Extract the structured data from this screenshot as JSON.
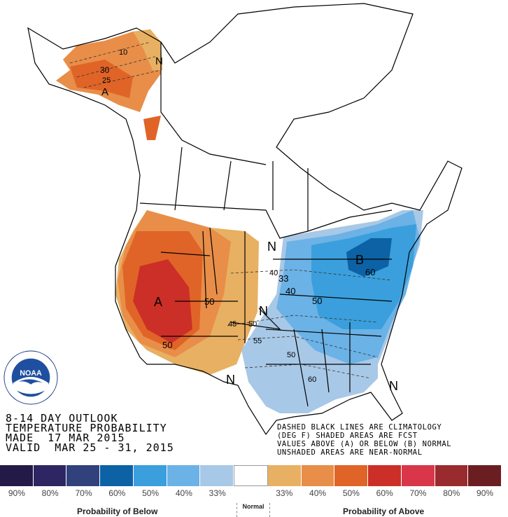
{
  "title_lines": [
    "8-14 DAY OUTLOOK",
    "TEMPERATURE PROBABILITY",
    "MADE  17 MAR 2015",
    "VALID  MAR 25 - 31, 2015"
  ],
  "note_lines": [
    "DASHED BLACK LINES ARE CLIMATOLOGY",
    "(DEG F) SHADED AREAS ARE FCST",
    "VALUES ABOVE (A) OR BELOW (B) NORMAL",
    "UNSHADED AREAS ARE NEAR-NORMAL"
  ],
  "map_labels": {
    "ak_n": "N",
    "ak_10": "10",
    "ak_30": "30",
    "ak_25": "25",
    "ak_a": "A",
    "w_a": "A",
    "w_50": "50",
    "w_50b": "50",
    "w_45": "45",
    "w_50c": "50",
    "c_n1": "N",
    "c_n2": "N",
    "c_40": "40",
    "c_33": "33",
    "c_40b": "40",
    "c_50": "50",
    "c_55": "55",
    "e_b": "B",
    "e_60": "60",
    "e_50": "50",
    "e_60b": "60",
    "s_n": "N",
    "se_n": "N"
  },
  "logo": {
    "text": "NOAA",
    "ring": "NATIONAL OCEANIC AND ATMOSPHERIC ADMINISTRATION · U.S. DEPARTMENT OF COMMERCE"
  },
  "legend": {
    "colors": [
      "#231a47",
      "#2e2563",
      "#31417c",
      "#0c62a4",
      "#3a9fdc",
      "#6bb2e6",
      "#a8c8e7",
      "#ffffff",
      "#e8b063",
      "#e88e48",
      "#e06427",
      "#cc2f27",
      "#d9364a",
      "#992b2f",
      "#6b1e22"
    ],
    "ticks": [
      "90%",
      "80%",
      "70%",
      "60%",
      "50%",
      "40%",
      "33%",
      "Normal",
      "33%",
      "40%",
      "50%",
      "60%",
      "70%",
      "80%",
      "90%"
    ],
    "below_label": "Probability of Below",
    "normal_label": "Normal",
    "above_label": "Probability of Above"
  }
}
